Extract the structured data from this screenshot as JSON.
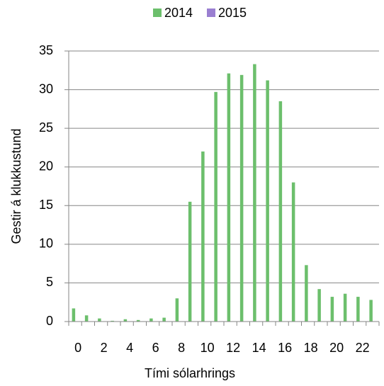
{
  "chart_data": {
    "type": "bar",
    "xlabel": "Tími sólarhrings",
    "ylabel": "Gestir á klukkustund",
    "categories": [
      "0",
      null,
      "2",
      null,
      "4",
      null,
      "6",
      null,
      "8",
      null,
      "10",
      null,
      "12",
      null,
      "14",
      null,
      "16",
      null,
      "18",
      null,
      "20",
      null,
      "22",
      null
    ],
    "series": [
      {
        "name": "2014",
        "color": "#6cbf6c",
        "values": [
          1.7,
          0.8,
          0.4,
          0.1,
          0.3,
          0.2,
          0.4,
          0.5,
          3.0,
          15.5,
          22.0,
          29.7,
          32.1,
          31.9,
          33.3,
          31.2,
          28.5,
          18.0,
          7.3,
          4.2,
          3.2,
          3.6,
          3.2,
          2.8
        ]
      },
      {
        "name": "2015",
        "color": "#9a7fd1",
        "values": [
          null,
          null,
          null,
          null,
          null,
          null,
          null,
          null,
          null,
          null,
          null,
          null,
          null,
          null,
          null,
          null,
          null,
          null,
          null,
          null,
          null,
          null,
          null,
          null
        ]
      }
    ],
    "ylim": [
      0,
      35
    ],
    "yticks": [
      0,
      5,
      10,
      15,
      20,
      25,
      30,
      35
    ],
    "grid": true,
    "legend": "top"
  }
}
